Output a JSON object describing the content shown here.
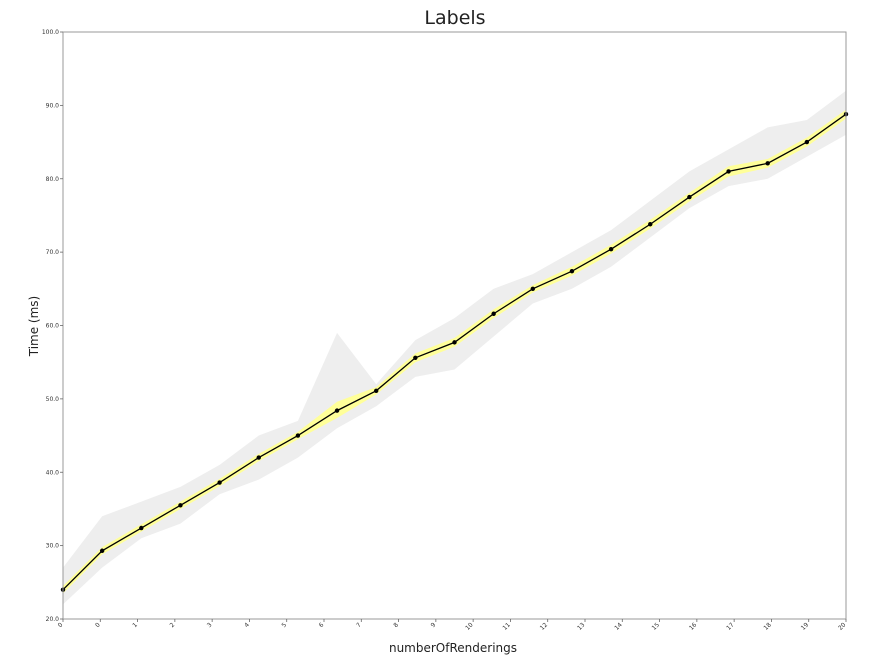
{
  "chart_data": {
    "type": "line",
    "title": "Labels",
    "xlabel": "numberOfRenderings",
    "ylabel": "Time (ms)",
    "ylim": [
      20,
      100
    ],
    "yticks": [
      "20.0",
      "30.0",
      "40.0",
      "50.0",
      "60.0",
      "70.0",
      "80.0",
      "90.0",
      "100.0"
    ],
    "x_tick_labels": [
      "0",
      "0",
      "1",
      "2",
      "3",
      "4",
      "5",
      "6",
      "7",
      "8",
      "9",
      "10",
      "11",
      "12",
      "13",
      "14",
      "15",
      "16",
      "17",
      "18",
      "19",
      "20"
    ],
    "grid": false,
    "series": [
      {
        "values": [
          24.0,
          29.3,
          32.4,
          35.5,
          38.6,
          42.0,
          45.0,
          48.4,
          51.1,
          55.6,
          57.7,
          61.6,
          65.0,
          67.4,
          70.4,
          73.8,
          77.5,
          81.0,
          82.1,
          85.0,
          88.8
        ],
        "ci_lower": [
          23.5,
          28.8,
          31.9,
          35.0,
          38.1,
          41.5,
          44.5,
          47.4,
          50.6,
          55.0,
          57.1,
          61.0,
          64.5,
          66.8,
          69.8,
          73.2,
          76.9,
          80.3,
          81.5,
          84.4,
          88.2
        ],
        "ci_upper": [
          24.5,
          29.8,
          32.9,
          36.0,
          39.1,
          42.5,
          45.5,
          49.6,
          51.6,
          56.2,
          58.3,
          62.2,
          65.5,
          68.0,
          71.0,
          74.4,
          78.1,
          81.7,
          82.7,
          85.6,
          89.4
        ],
        "range_min": [
          22.0,
          27.0,
          31.0,
          33.0,
          37.0,
          39.0,
          42.0,
          46.0,
          49.0,
          53.0,
          54.0,
          58.5,
          63.0,
          65.0,
          68.0,
          72.0,
          76.0,
          79.0,
          80.0,
          83.0,
          86.0
        ],
        "range_max": [
          27.0,
          34.0,
          36.0,
          38.0,
          41.0,
          45.0,
          47.0,
          59.0,
          52.0,
          58.0,
          61.0,
          65.0,
          67.0,
          70.0,
          73.0,
          77.0,
          81.0,
          84.0,
          87.0,
          88.0,
          92.0
        ]
      }
    ],
    "colors": {
      "line": "#000000",
      "marker": "#000000",
      "ci_band": "#ffff99",
      "range_band": "#eeeeee",
      "frame": "#999999"
    }
  }
}
